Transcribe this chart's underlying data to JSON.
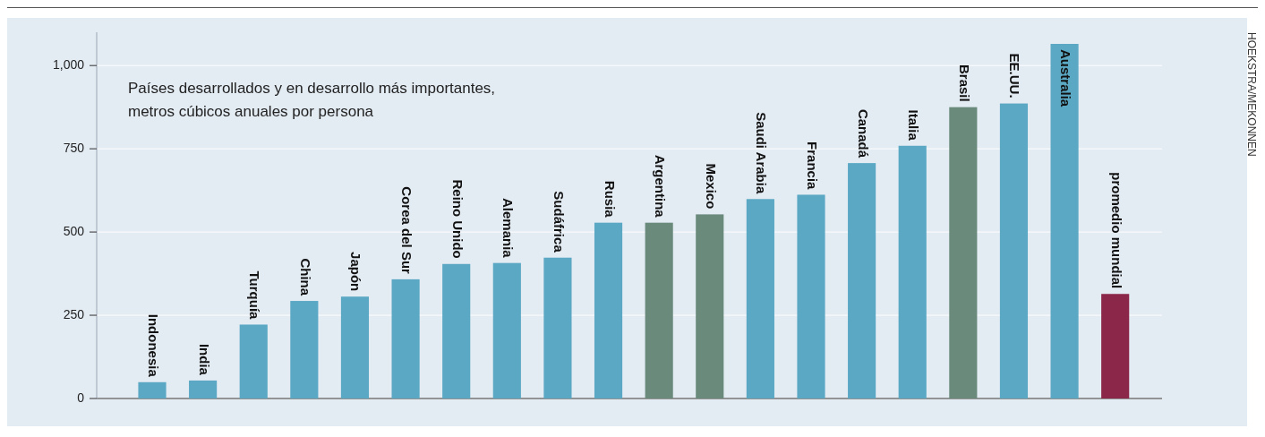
{
  "chart_data": {
    "type": "bar",
    "title": "Países desarrollados y en desarrollo más importantes,",
    "subtitle": "metros cúbicos anuales por persona",
    "annotations": [
      "HOEKSTRA/MEKONNEN"
    ],
    "categories": [
      "Indonesia",
      "India",
      "Turquía",
      "China",
      "Japón",
      "Corea del Sur",
      "Reino Unido",
      "Alemania",
      "Sudáfrica",
      "Rusia",
      "Argentina",
      "Mexico",
      "Saudi Arabia",
      "Francia",
      "Canadá",
      "Italia",
      "Brasil",
      "EE.UU.",
      "Australia",
      "promedio mundial"
    ],
    "values": [
      49,
      54,
      222,
      293,
      306,
      358,
      404,
      407,
      423,
      528,
      528,
      553,
      599,
      612,
      707,
      759,
      875,
      886,
      1065,
      314
    ],
    "colors": [
      "#5ba8c4",
      "#5ba8c4",
      "#5ba8c4",
      "#5ba8c4",
      "#5ba8c4",
      "#5ba8c4",
      "#5ba8c4",
      "#5ba8c4",
      "#5ba8c4",
      "#5ba8c4",
      "#6a8a7c",
      "#6a8a7c",
      "#5ba8c4",
      "#5ba8c4",
      "#5ba8c4",
      "#5ba8c4",
      "#6a8a7c",
      "#5ba8c4",
      "#5ba8c4",
      "#8b2748"
    ],
    "ylim": [
      0,
      1100
    ],
    "yticks": [
      0,
      250,
      500,
      750,
      {
        "value": 1000,
        "label": "1,000"
      }
    ],
    "grid": "y"
  }
}
